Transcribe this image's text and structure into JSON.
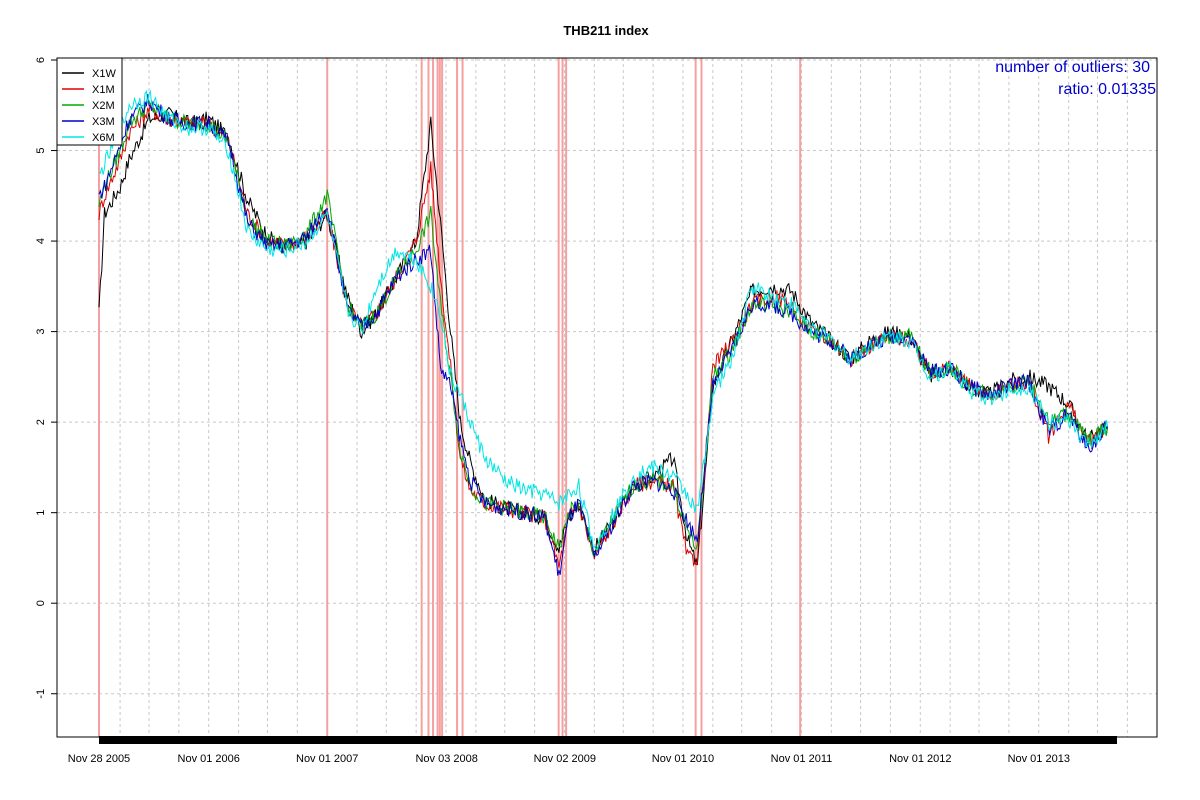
{
  "chart_data": {
    "type": "line",
    "title": "THB211 index",
    "xlabel": "",
    "ylabel": "",
    "ylim": [
      -1.5,
      6
    ],
    "y_ticks": [
      -1,
      0,
      1,
      2,
      3,
      4,
      5,
      6
    ],
    "x_ticks": [
      "Nov 28 2005",
      "Nov 01 2006",
      "Nov 01 2007",
      "Nov 03 2008",
      "Nov 02 2009",
      "Nov 01 2010",
      "Nov 01 2011",
      "Nov 01 2012",
      "Nov 01 2013"
    ],
    "x_range": [
      "2005-11-28",
      "2014-06-30"
    ],
    "grid": true,
    "legend_position": "top-left",
    "annotations": [
      {
        "text": "number of outliers:  30",
        "color": "#0000cc"
      },
      {
        "text": "ratio:  0.01335",
        "color": "#0000cc"
      }
    ],
    "outlier_color": "#f4a0a0",
    "outlier_dates": [
      "2005-11-28",
      "2007-11-01",
      "2008-08-18",
      "2008-09-08",
      "2008-09-22",
      "2008-10-06",
      "2008-10-13",
      "2008-10-20",
      "2008-12-05",
      "2008-12-22",
      "2009-10-14",
      "2009-10-26",
      "2009-11-06",
      "2010-12-10",
      "2010-12-28",
      "2011-10-28"
    ],
    "series": [
      {
        "name": "X1W",
        "color": "#000000",
        "x": [
          "2005-11-28",
          "2005-12-15",
          "2006-02-01",
          "2006-03-01",
          "2006-05-01",
          "2006-07-01",
          "2006-09-01",
          "2006-11-01",
          "2007-01-01",
          "2007-03-01",
          "2007-05-01",
          "2007-07-01",
          "2007-09-01",
          "2007-11-01",
          "2008-01-01",
          "2008-02-15",
          "2008-04-01",
          "2008-06-01",
          "2008-08-01",
          "2008-09-15",
          "2008-10-15",
          "2008-11-15",
          "2008-12-15",
          "2009-01-15",
          "2009-03-01",
          "2009-05-01",
          "2009-07-01",
          "2009-09-01",
          "2009-10-15",
          "2009-11-15",
          "2009-12-15",
          "2010-02-01",
          "2010-04-01",
          "2010-06-01",
          "2010-08-01",
          "2010-10-01",
          "2010-11-15",
          "2010-12-15",
          "2011-02-01",
          "2011-04-01",
          "2011-06-01",
          "2011-08-01",
          "2011-10-01",
          "2011-12-01",
          "2012-02-01",
          "2012-04-01",
          "2012-06-01",
          "2012-08-01",
          "2012-10-01",
          "2012-12-01",
          "2013-02-01",
          "2013-04-01",
          "2013-06-01",
          "2013-08-01",
          "2013-10-01",
          "2013-12-01",
          "2014-02-01",
          "2014-04-01",
          "2014-06-01"
        ],
        "y": [
          3.2,
          4.3,
          4.6,
          4.9,
          5.35,
          5.4,
          5.3,
          5.35,
          5.15,
          4.45,
          4.05,
          3.9,
          4.0,
          4.3,
          3.4,
          3.0,
          3.2,
          3.6,
          4.0,
          5.3,
          4.2,
          3.0,
          2.0,
          1.55,
          1.15,
          1.05,
          1.0,
          0.95,
          0.6,
          0.95,
          1.1,
          0.6,
          0.9,
          1.3,
          1.4,
          1.6,
          0.7,
          0.4,
          2.4,
          2.9,
          3.45,
          3.5,
          3.45,
          3.1,
          2.9,
          2.7,
          2.9,
          3.0,
          2.95,
          2.5,
          2.6,
          2.4,
          2.3,
          2.45,
          2.5,
          2.4,
          2.2,
          1.8,
          1.95
        ]
      },
      {
        "name": "X1M",
        "color": "#dd0000",
        "x": [
          "2005-11-28",
          "2005-12-15",
          "2006-02-01",
          "2006-03-01",
          "2006-05-01",
          "2006-07-01",
          "2006-09-01",
          "2006-11-01",
          "2007-01-01",
          "2007-03-01",
          "2007-05-01",
          "2007-07-01",
          "2007-09-01",
          "2007-11-01",
          "2008-01-01",
          "2008-02-15",
          "2008-04-01",
          "2008-06-01",
          "2008-08-01",
          "2008-09-15",
          "2008-10-15",
          "2008-11-15",
          "2008-12-15",
          "2009-01-15",
          "2009-03-01",
          "2009-05-01",
          "2009-07-01",
          "2009-09-01",
          "2009-10-15",
          "2009-11-15",
          "2009-12-15",
          "2010-02-01",
          "2010-04-01",
          "2010-06-01",
          "2010-08-01",
          "2010-10-01",
          "2010-11-15",
          "2010-12-15",
          "2011-02-01",
          "2011-04-01",
          "2011-06-01",
          "2011-08-01",
          "2011-10-01",
          "2011-12-01",
          "2012-02-01",
          "2012-04-01",
          "2012-06-01",
          "2012-08-01",
          "2012-10-01",
          "2012-12-01",
          "2013-02-01",
          "2013-04-01",
          "2013-06-01",
          "2013-08-01",
          "2013-10-01",
          "2013-12-01",
          "2014-02-01",
          "2014-04-01",
          "2014-06-01"
        ],
        "y": [
          4.3,
          4.5,
          4.9,
          5.2,
          5.45,
          5.35,
          5.3,
          5.3,
          5.1,
          4.3,
          4.0,
          3.95,
          4.05,
          4.3,
          3.3,
          3.05,
          3.2,
          3.6,
          4.0,
          4.8,
          3.6,
          2.6,
          1.6,
          1.25,
          1.1,
          1.05,
          1.0,
          0.95,
          0.4,
          0.95,
          1.1,
          0.5,
          0.9,
          1.3,
          1.35,
          1.3,
          0.5,
          0.5,
          2.6,
          2.9,
          3.3,
          3.4,
          3.3,
          3.0,
          2.9,
          2.7,
          2.85,
          2.95,
          2.9,
          2.55,
          2.6,
          2.4,
          2.3,
          2.4,
          2.45,
          1.85,
          2.2,
          1.75,
          1.95
        ]
      },
      {
        "name": "X2M",
        "color": "#00aa00",
        "x": [
          "2005-11-28",
          "2005-12-15",
          "2006-02-01",
          "2006-03-01",
          "2006-05-01",
          "2006-07-01",
          "2006-09-01",
          "2006-11-01",
          "2007-01-01",
          "2007-03-01",
          "2007-05-01",
          "2007-07-01",
          "2007-09-01",
          "2007-11-01",
          "2008-01-01",
          "2008-02-15",
          "2008-04-01",
          "2008-06-01",
          "2008-08-01",
          "2008-09-15",
          "2008-10-15",
          "2008-11-15",
          "2008-12-15",
          "2009-01-15",
          "2009-03-01",
          "2009-05-01",
          "2009-07-01",
          "2009-09-01",
          "2009-10-15",
          "2009-11-15",
          "2009-12-15",
          "2010-02-01",
          "2010-04-01",
          "2010-06-01",
          "2010-08-01",
          "2010-10-01",
          "2010-11-15",
          "2010-12-15",
          "2011-02-01",
          "2011-04-01",
          "2011-06-01",
          "2011-08-01",
          "2011-10-01",
          "2011-12-01",
          "2012-02-01",
          "2012-04-01",
          "2012-06-01",
          "2012-08-01",
          "2012-10-01",
          "2012-12-01",
          "2013-02-01",
          "2013-04-01",
          "2013-06-01",
          "2013-08-01",
          "2013-10-01",
          "2013-12-01",
          "2014-02-01",
          "2014-04-01",
          "2014-06-01"
        ],
        "y": [
          4.4,
          4.6,
          5.0,
          5.3,
          5.5,
          5.35,
          5.3,
          5.3,
          5.1,
          4.25,
          4.0,
          3.95,
          4.1,
          4.5,
          3.3,
          3.05,
          3.2,
          3.6,
          3.9,
          4.3,
          3.3,
          2.5,
          1.7,
          1.3,
          1.1,
          1.05,
          1.0,
          0.95,
          0.6,
          1.0,
          1.1,
          0.55,
          0.95,
          1.3,
          1.35,
          1.3,
          0.8,
          0.6,
          2.5,
          2.8,
          3.3,
          3.3,
          3.2,
          3.0,
          2.9,
          2.7,
          2.85,
          2.95,
          2.95,
          2.55,
          2.6,
          2.4,
          2.3,
          2.4,
          2.45,
          2.0,
          2.1,
          1.8,
          1.95
        ]
      },
      {
        "name": "X3M",
        "color": "#0000cc",
        "x": [
          "2005-11-28",
          "2005-12-15",
          "2006-02-01",
          "2006-03-01",
          "2006-05-01",
          "2006-07-01",
          "2006-09-01",
          "2006-11-01",
          "2007-01-01",
          "2007-03-01",
          "2007-05-01",
          "2007-07-01",
          "2007-09-01",
          "2007-11-01",
          "2008-01-01",
          "2008-02-15",
          "2008-04-01",
          "2008-06-01",
          "2008-08-01",
          "2008-09-15",
          "2008-10-15",
          "2008-11-15",
          "2008-12-15",
          "2009-01-15",
          "2009-03-01",
          "2009-05-01",
          "2009-07-01",
          "2009-09-01",
          "2009-10-15",
          "2009-11-15",
          "2009-12-15",
          "2010-02-01",
          "2010-04-01",
          "2010-06-01",
          "2010-08-01",
          "2010-10-01",
          "2010-11-15",
          "2010-12-15",
          "2011-02-01",
          "2011-04-01",
          "2011-06-01",
          "2011-08-01",
          "2011-10-01",
          "2011-12-01",
          "2012-02-01",
          "2012-04-01",
          "2012-06-01",
          "2012-08-01",
          "2012-10-01",
          "2012-12-01",
          "2013-02-01",
          "2013-04-01",
          "2013-06-01",
          "2013-08-01",
          "2013-10-01",
          "2013-12-01",
          "2014-02-01",
          "2014-04-01",
          "2014-06-01"
        ],
        "y": [
          4.5,
          4.6,
          5.05,
          5.35,
          5.55,
          5.35,
          5.3,
          5.3,
          5.1,
          4.2,
          3.95,
          3.95,
          4.05,
          4.4,
          3.25,
          3.05,
          3.2,
          3.6,
          3.8,
          3.9,
          2.6,
          2.4,
          1.8,
          1.35,
          1.1,
          1.05,
          1.0,
          0.95,
          0.3,
          0.95,
          1.1,
          0.5,
          0.9,
          1.3,
          1.35,
          1.25,
          0.9,
          0.7,
          2.4,
          2.8,
          3.3,
          3.3,
          3.2,
          3.0,
          2.9,
          2.7,
          2.85,
          2.95,
          2.95,
          2.55,
          2.6,
          2.4,
          2.3,
          2.4,
          2.45,
          1.9,
          2.1,
          1.7,
          1.95
        ]
      },
      {
        "name": "X6M",
        "color": "#00e5e5",
        "x": [
          "2005-11-28",
          "2005-12-15",
          "2006-02-01",
          "2006-03-01",
          "2006-05-01",
          "2006-07-01",
          "2006-09-01",
          "2006-11-01",
          "2007-01-01",
          "2007-03-01",
          "2007-05-01",
          "2007-07-01",
          "2007-09-01",
          "2007-11-01",
          "2008-01-01",
          "2008-02-15",
          "2008-04-01",
          "2008-06-01",
          "2008-08-01",
          "2008-09-15",
          "2008-10-15",
          "2008-11-15",
          "2008-12-15",
          "2009-01-15",
          "2009-03-01",
          "2009-05-01",
          "2009-07-01",
          "2009-09-01",
          "2009-10-15",
          "2009-11-15",
          "2009-12-15",
          "2010-02-01",
          "2010-04-01",
          "2010-06-01",
          "2010-08-01",
          "2010-10-01",
          "2010-11-15",
          "2010-12-15",
          "2011-02-01",
          "2011-04-01",
          "2011-06-01",
          "2011-08-01",
          "2011-10-01",
          "2011-12-01",
          "2012-02-01",
          "2012-04-01",
          "2012-06-01",
          "2012-08-01",
          "2012-10-01",
          "2012-12-01",
          "2013-02-01",
          "2013-04-01",
          "2013-06-01",
          "2013-08-01",
          "2013-10-01",
          "2013-12-01",
          "2014-02-01",
          "2014-04-01",
          "2014-06-01"
        ],
        "y": [
          4.7,
          4.85,
          5.2,
          5.5,
          5.6,
          5.35,
          5.25,
          5.25,
          5.0,
          4.1,
          3.9,
          3.9,
          4.0,
          4.3,
          3.25,
          3.0,
          3.5,
          3.9,
          3.8,
          3.5,
          3.2,
          2.5,
          2.3,
          2.0,
          1.6,
          1.35,
          1.25,
          1.2,
          1.1,
          1.2,
          1.3,
          0.6,
          1.0,
          1.4,
          1.5,
          1.4,
          1.2,
          1.0,
          2.3,
          2.7,
          3.5,
          3.4,
          3.3,
          3.05,
          2.9,
          2.7,
          2.85,
          2.95,
          2.9,
          2.5,
          2.6,
          2.35,
          2.25,
          2.35,
          2.4,
          2.0,
          2.0,
          1.75,
          1.95
        ]
      }
    ]
  }
}
